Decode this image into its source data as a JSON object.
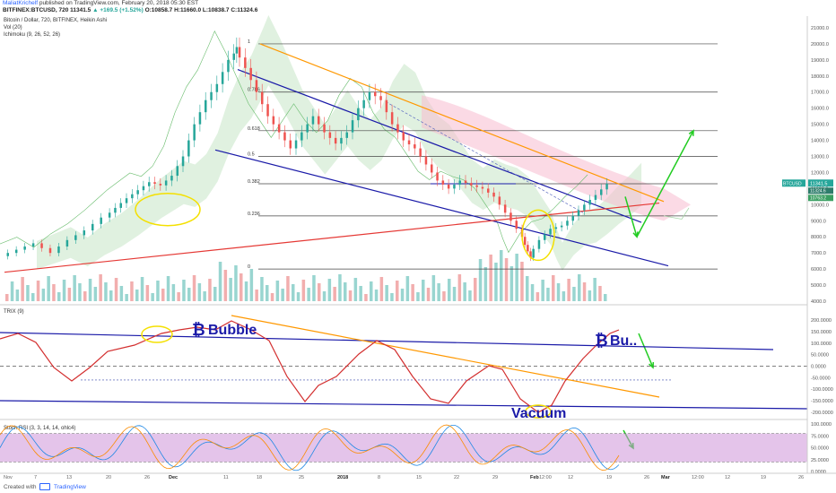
{
  "header": {
    "author": "MaliatKrichelf",
    "published": "published on TradingView.com, February 20, 2018 05:30 EST",
    "symbol": "BITFINEX:BTCUSD, 720",
    "quote_values": "11341.5",
    "quote_change": "▲ +169.5 (+1.52%)",
    "ohlc": "O:10858.7 H:11660.0 L:10838.7 C:11324.6"
  },
  "legend": {
    "main_title": "Bitcoin / Dollar, 720, BITFINEX, Heikin Ashi",
    "vol": "Vol (20)",
    "ichimoku": "Ichimoku (9, 26, 52, 26)",
    "trix": "TRIX (9)",
    "stoch": "Stoch RSI (3, 3, 14, 14, ohlc4)"
  },
  "annotations": {
    "bubble": "Bubble",
    "bu": "Bu..",
    "vacuum": "Vacuum",
    "btc_symbol": "₿"
  },
  "chart_data": [
    {
      "type": "line",
      "name": "main",
      "x_ticks": [
        "Nov",
        "7",
        "13",
        "20",
        "26",
        "Dec",
        "11",
        "18",
        "25",
        "2018",
        "8",
        "15",
        "22",
        "29",
        "Feb",
        "12:00",
        "12",
        "19",
        "26",
        "Mar",
        "12:00",
        "12",
        "19",
        "26"
      ],
      "y_ticks": [
        "21000.0",
        "20000.0",
        "19000.0",
        "18000.0",
        "17000.0",
        "16000.0",
        "15000.0",
        "14000.0",
        "13000.0",
        "12000.0",
        "11000.0",
        "10000.0",
        "9000.0",
        "8000.0",
        "7000.0",
        "6000.0",
        "5000.0",
        "4000.0"
      ],
      "ylim": [
        4000,
        21500
      ],
      "last_price_label": "BTCUSD",
      "last_price": "11341.5",
      "sub_labels": [
        "11324.6",
        "10763.2"
      ],
      "fib_levels": [
        {
          "label": "1",
          "value": 20000
        },
        {
          "label": "0.786",
          "value": 17000
        },
        {
          "label": "0.618",
          "value": 14600
        },
        {
          "label": "0.5",
          "value": 13000
        },
        {
          "label": "0.382",
          "value": 11300
        },
        {
          "label": "0.236",
          "value": 9300
        },
        {
          "label": "0",
          "value": 6000
        }
      ],
      "price_path": [
        {
          "x": 0,
          "y": 6800
        },
        {
          "x": 3,
          "y": 7200
        },
        {
          "x": 6,
          "y": 7600
        },
        {
          "x": 9,
          "y": 7000
        },
        {
          "x": 12,
          "y": 7800
        },
        {
          "x": 15,
          "y": 8400
        },
        {
          "x": 18,
          "y": 9200
        },
        {
          "x": 20,
          "y": 9800
        },
        {
          "x": 22,
          "y": 10400
        },
        {
          "x": 24,
          "y": 10900
        },
        {
          "x": 26,
          "y": 11400
        },
        {
          "x": 28,
          "y": 11200
        },
        {
          "x": 30,
          "y": 11800
        },
        {
          "x": 32,
          "y": 13000
        },
        {
          "x": 34,
          "y": 15000
        },
        {
          "x": 36,
          "y": 16500
        },
        {
          "x": 38,
          "y": 17500
        },
        {
          "x": 40,
          "y": 19000
        },
        {
          "x": 41,
          "y": 19800
        },
        {
          "x": 43,
          "y": 18500
        },
        {
          "x": 45,
          "y": 17000
        },
        {
          "x": 47,
          "y": 15500
        },
        {
          "x": 49,
          "y": 14500
        },
        {
          "x": 51,
          "y": 13500
        },
        {
          "x": 53,
          "y": 14500
        },
        {
          "x": 55,
          "y": 15500
        },
        {
          "x": 57,
          "y": 14500
        },
        {
          "x": 59,
          "y": 13800
        },
        {
          "x": 61,
          "y": 14500
        },
        {
          "x": 63,
          "y": 16000
        },
        {
          "x": 65,
          "y": 17000
        },
        {
          "x": 67,
          "y": 16500
        },
        {
          "x": 69,
          "y": 15000
        },
        {
          "x": 71,
          "y": 14000
        },
        {
          "x": 73,
          "y": 13500
        },
        {
          "x": 75,
          "y": 12500
        },
        {
          "x": 77,
          "y": 11500
        },
        {
          "x": 79,
          "y": 11000
        },
        {
          "x": 81,
          "y": 11500
        },
        {
          "x": 83,
          "y": 11200
        },
        {
          "x": 85,
          "y": 11000
        },
        {
          "x": 87,
          "y": 10500
        },
        {
          "x": 89,
          "y": 9500
        },
        {
          "x": 91,
          "y": 8500
        },
        {
          "x": 92,
          "y": 7500
        },
        {
          "x": 93,
          "y": 6700
        },
        {
          "x": 95,
          "y": 7800
        },
        {
          "x": 97,
          "y": 8500
        },
        {
          "x": 99,
          "y": 8700
        },
        {
          "x": 101,
          "y": 9300
        },
        {
          "x": 103,
          "y": 10000
        },
        {
          "x": 105,
          "y": 10600
        },
        {
          "x": 107,
          "y": 11300
        }
      ]
    },
    {
      "type": "line",
      "name": "TRIX (9)",
      "y_ticks": [
        "200.0000",
        "150.0000",
        "100.0000",
        "50.0000",
        "0.0000",
        "-50.0000",
        "-100.0000",
        "-150.0000",
        "-200.0000"
      ],
      "ylim": [
        -220,
        220
      ]
    },
    {
      "type": "line",
      "name": "Stoch RSI (3, 3, 14, 14, ohlc4)",
      "y_ticks": [
        "100.0000",
        "75.0000",
        "50.0000",
        "25.0000",
        "0.0000"
      ],
      "ylim": [
        0,
        100
      ]
    }
  ],
  "footer": {
    "created_with": "Created with",
    "brand": "TradingView"
  },
  "colors": {
    "up": "#26a69a",
    "down": "#ef5350",
    "trend_blue": "#1a1aa8",
    "trend_orange": "#ff9800",
    "trend_red": "#e53935",
    "ellipse": "#ffeb3b",
    "arrow": "#22cc22",
    "trix_line": "#d32f2f",
    "stoch_band": "#ce93d8"
  }
}
